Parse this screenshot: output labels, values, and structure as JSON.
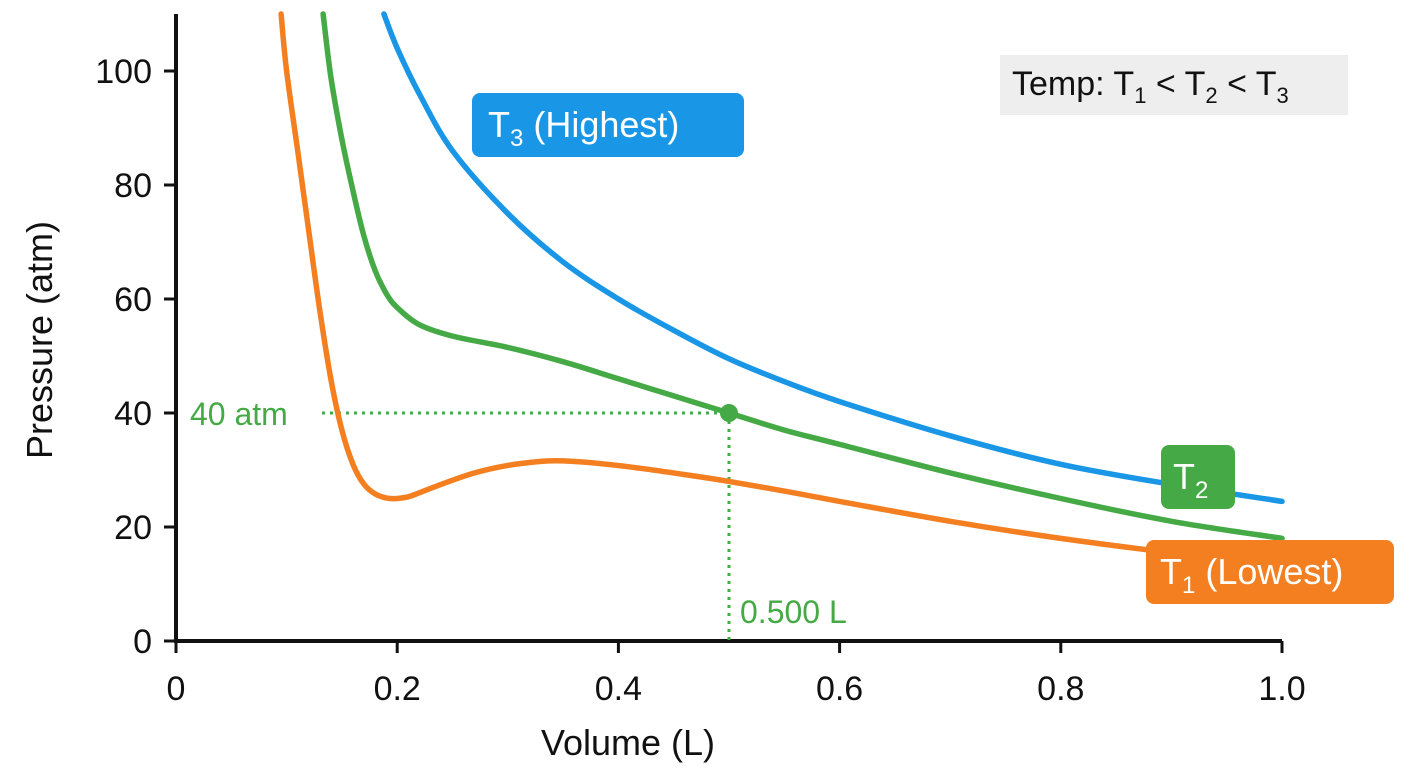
{
  "chart_data": {
    "type": "line",
    "xlabel": "Volume (L)",
    "ylabel": "Pressure (atm)",
    "xlim": [
      0,
      1.0
    ],
    "ylim": [
      0,
      110
    ],
    "x_ticks": [
      {
        "value": 0,
        "label": "0"
      },
      {
        "value": 0.2,
        "label": "0.2"
      },
      {
        "value": 0.4,
        "label": "0.4"
      },
      {
        "value": 0.6,
        "label": "0.6"
      },
      {
        "value": 0.8,
        "label": "0.8"
      },
      {
        "value": 1.0,
        "label": "1.0"
      }
    ],
    "y_ticks": [
      {
        "value": 0,
        "label": "0"
      },
      {
        "value": 20,
        "label": "20"
      },
      {
        "value": 40,
        "label": "40"
      },
      {
        "value": 60,
        "label": "60"
      },
      {
        "value": 80,
        "label": "80"
      },
      {
        "value": 100,
        "label": "100"
      }
    ],
    "grid": false,
    "series": [
      {
        "id": "t3",
        "label_sub": "3",
        "label_suffix": " (Highest)",
        "color": "#1a96e6",
        "x": [
          0.188,
          0.2,
          0.22,
          0.25,
          0.3,
          0.35,
          0.4,
          0.45,
          0.5,
          0.55,
          0.6,
          0.7,
          0.8,
          0.9,
          1.0
        ],
        "y": [
          110,
          104,
          96,
          86,
          75,
          66.5,
          60,
          54.5,
          49.5,
          45.5,
          42,
          36,
          31,
          27.5,
          24.5
        ]
      },
      {
        "id": "t2",
        "label_sub": "2",
        "label_suffix": "",
        "color": "#45aa45",
        "x": [
          0.133,
          0.14,
          0.15,
          0.16,
          0.17,
          0.18,
          0.19,
          0.2,
          0.22,
          0.25,
          0.3,
          0.35,
          0.4,
          0.45,
          0.5,
          0.55,
          0.6,
          0.7,
          0.8,
          0.9,
          1.0
        ],
        "y": [
          110,
          99,
          88,
          79,
          71,
          65,
          61,
          58.5,
          55.5,
          53.5,
          51.5,
          49,
          46,
          43,
          40,
          37,
          34.5,
          29.5,
          25,
          21,
          18
        ]
      },
      {
        "id": "t1",
        "label_sub": "1",
        "label_suffix": " (Lowest)",
        "color": "#f47f20",
        "x": [
          0.095,
          0.1,
          0.11,
          0.12,
          0.13,
          0.14,
          0.15,
          0.16,
          0.17,
          0.18,
          0.19,
          0.2,
          0.21,
          0.22,
          0.24,
          0.27,
          0.3,
          0.33,
          0.35,
          0.38,
          0.42,
          0.46,
          0.5,
          0.55,
          0.6,
          0.7,
          0.8,
          0.9,
          1.0
        ],
        "y": [
          110,
          100,
          86,
          72,
          58,
          46,
          37,
          31,
          27.5,
          25.8,
          25.1,
          25,
          25.3,
          26,
          27.5,
          29.5,
          30.8,
          31.5,
          31.6,
          31.2,
          30.3,
          29.2,
          28,
          26.3,
          24.5,
          21,
          18,
          15.5,
          13.5
        ]
      }
    ],
    "highlight_point": {
      "x": 0.5,
      "y": 40,
      "series": "t2",
      "y_label": "40 atm",
      "x_label": "0.500 L"
    },
    "legend_box": {
      "prefix": "Temp: ",
      "items": [
        {
          "letter": "T",
          "sub": "1",
          "after": " < "
        },
        {
          "letter": "T",
          "sub": "2",
          "after": " < "
        },
        {
          "letter": "T",
          "sub": "3",
          "after": ""
        }
      ]
    }
  }
}
